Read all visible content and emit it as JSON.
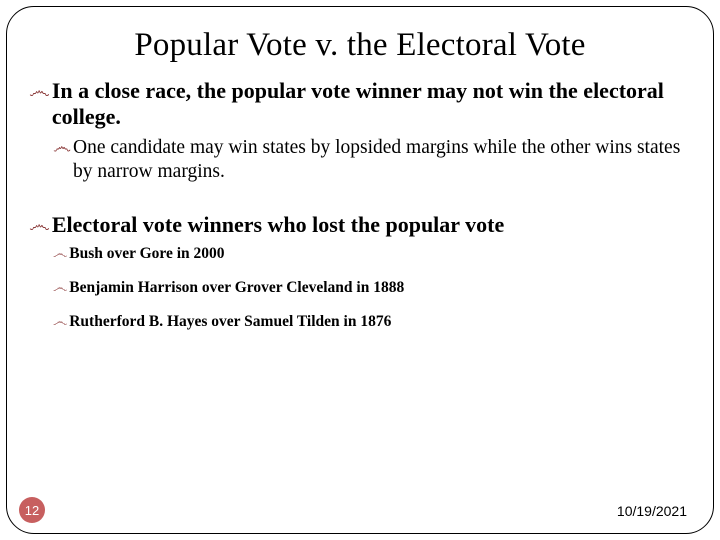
{
  "title": "Popular Vote v. the Electoral Vote",
  "colors": {
    "bullet_marker": "#8b3a3a",
    "page_badge_bg": "#c75f5f",
    "page_badge_text": "#ffffff",
    "text": "#000000",
    "border": "#000000",
    "background": "#ffffff"
  },
  "bullets": {
    "b1": {
      "text": "In a close race, the popular vote winner may not win the electoral college.",
      "sub1": {
        "text": "One candidate may win states by lopsided margins while the other wins states by narrow margins."
      }
    },
    "b2": {
      "text": "Electoral vote winners who lost the popular vote",
      "sub1": {
        "text": "Bush over Gore in 2000"
      },
      "sub2": {
        "text": "Benjamin Harrison over Grover Cleveland in 1888"
      },
      "sub3": {
        "text": "Rutherford B. Hayes over Samuel Tilden in 1876"
      }
    }
  },
  "page_number": "12",
  "date": "10/19/2021",
  "marker_glyph": "෴"
}
